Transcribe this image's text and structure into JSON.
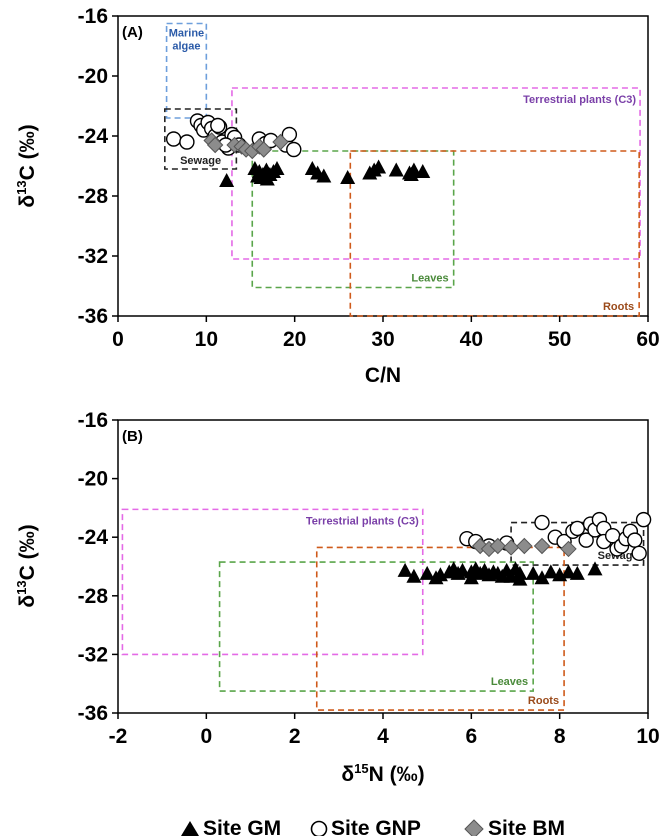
{
  "colors": {
    "marine": "#6e9fdc",
    "terrestrial": "#e46ae6",
    "sewage": "#222222",
    "leaves": "#5aa54a",
    "roots": "#cf5a1a",
    "terrestrial_text": "#7a3fa8",
    "leaves_text": "#4a8a3a",
    "roots_text": "#9a4a1a",
    "marine_text": "#2a5aa8",
    "gm": "#000000",
    "bm": "#8c8c8c"
  },
  "legend": {
    "position": "bottom-center",
    "items": [
      {
        "marker": "triangle",
        "label": "Site GM"
      },
      {
        "marker": "circle",
        "label": "Site GNP"
      },
      {
        "marker": "diamond",
        "label": "Site BM"
      }
    ]
  },
  "chart_data": [
    {
      "type": "scatter",
      "panel": "(A)",
      "xlabel": "C/N",
      "ylabel_main": "δ",
      "ylabel_sup": "13",
      "ylabel_rest": "C (‰)",
      "xlim": [
        0,
        60
      ],
      "ylim": [
        -36,
        -16
      ],
      "xticks": [
        0,
        10,
        20,
        30,
        40,
        50,
        60
      ],
      "yticks": [
        -16,
        -20,
        -24,
        -28,
        -32,
        -36
      ],
      "regions": [
        {
          "label_lines": [
            "Marine",
            "algae"
          ],
          "x": [
            5.5,
            10.0
          ],
          "y": [
            -22.8,
            -16.5
          ],
          "color_key": "marine",
          "text_key": "marine_text",
          "label_pos": "top-center"
        },
        {
          "label_lines": [
            "Terrestrial plants (C3)"
          ],
          "x": [
            12.9,
            59.1
          ],
          "y": [
            -32.2,
            -20.8
          ],
          "color_key": "terrestrial",
          "text_key": "terrestrial_text",
          "label_pos": "top-right"
        },
        {
          "label_lines": [
            "Sewage"
          ],
          "x": [
            5.3,
            13.4
          ],
          "y": [
            -26.2,
            -22.2
          ],
          "color_key": "sewage",
          "text_key": "sewage",
          "label_pos": "bottom-center"
        },
        {
          "label_lines": [
            "Leaves"
          ],
          "x": [
            15.2,
            38.0
          ],
          "y": [
            -34.1,
            -25.0
          ],
          "color_key": "leaves",
          "text_key": "leaves_text",
          "label_pos": "bottom-right"
        },
        {
          "label_lines": [
            "Roots"
          ],
          "x": [
            26.3,
            59.0
          ],
          "y": [
            -36.0,
            -25.0
          ],
          "color_key": "roots",
          "text_key": "roots_text",
          "label_pos": "bottom-right"
        }
      ],
      "series": [
        {
          "name": "Site GM",
          "marker": "triangle",
          "points": [
            [
              12.3,
              -27.0
            ],
            [
              15.5,
              -26.2
            ],
            [
              16.0,
              -26.4
            ],
            [
              16.4,
              -26.6
            ],
            [
              16.8,
              -26.3
            ],
            [
              17.2,
              -26.6
            ],
            [
              17.6,
              -26.4
            ],
            [
              18.0,
              -26.2
            ],
            [
              16.2,
              -26.8
            ],
            [
              16.9,
              -26.9
            ],
            [
              22.0,
              -26.2
            ],
            [
              22.6,
              -26.5
            ],
            [
              23.3,
              -26.7
            ],
            [
              26.0,
              -26.8
            ],
            [
              28.5,
              -26.5
            ],
            [
              29.0,
              -26.3
            ],
            [
              29.5,
              -26.1
            ],
            [
              31.5,
              -26.3
            ],
            [
              33.0,
              -26.5
            ],
            [
              33.5,
              -26.3
            ],
            [
              34.5,
              -26.4
            ],
            [
              33.2,
              -26.6
            ],
            [
              15.8,
              -26.7
            ]
          ]
        },
        {
          "name": "Site GNP",
          "marker": "circle",
          "points": [
            [
              6.3,
              -24.2
            ],
            [
              7.8,
              -24.4
            ],
            [
              9.0,
              -23.0
            ],
            [
              9.4,
              -23.3
            ],
            [
              9.7,
              -23.6
            ],
            [
              10.2,
              -23.1
            ],
            [
              10.6,
              -23.5
            ],
            [
              11.0,
              -24.0
            ],
            [
              11.5,
              -23.4
            ],
            [
              11.8,
              -24.4
            ],
            [
              12.5,
              -24.8
            ],
            [
              12.9,
              -23.9
            ],
            [
              13.2,
              -24.1
            ],
            [
              13.7,
              -24.6
            ],
            [
              16.0,
              -24.2
            ],
            [
              16.7,
              -24.5
            ],
            [
              17.3,
              -24.3
            ],
            [
              19.0,
              -24.6
            ],
            [
              19.4,
              -23.9
            ],
            [
              19.9,
              -24.9
            ],
            [
              11.3,
              -23.3
            ],
            [
              12.2,
              -24.6
            ]
          ]
        },
        {
          "name": "Site BM",
          "marker": "diamond",
          "points": [
            [
              10.6,
              -24.3
            ],
            [
              11.0,
              -24.6
            ],
            [
              13.2,
              -24.6
            ],
            [
              14.0,
              -24.7
            ],
            [
              14.5,
              -24.9
            ],
            [
              15.2,
              -25.0
            ],
            [
              16.0,
              -24.7
            ],
            [
              16.5,
              -24.9
            ],
            [
              18.4,
              -24.4
            ]
          ]
        }
      ]
    },
    {
      "type": "scatter",
      "panel": "(B)",
      "xlabel_main": "δ",
      "xlabel_sup": "15",
      "xlabel_rest": "N (‰)",
      "ylabel_main": "δ",
      "ylabel_sup": "13",
      "ylabel_rest": "C (‰)",
      "xlim": [
        -2,
        10
      ],
      "ylim": [
        -36,
        -16
      ],
      "xticks": [
        -2,
        0,
        2,
        4,
        6,
        8,
        10
      ],
      "yticks": [
        -16,
        -20,
        -24,
        -28,
        -32,
        -36
      ],
      "regions": [
        {
          "label_lines": [
            "Terrestrial plants (C3)"
          ],
          "x": [
            -1.9,
            4.9
          ],
          "y": [
            -32.0,
            -22.1
          ],
          "color_key": "terrestrial",
          "text_key": "terrestrial_text",
          "label_pos": "top-right"
        },
        {
          "label_lines": [
            "Sewage"
          ],
          "x": [
            6.9,
            9.9
          ],
          "y": [
            -25.9,
            -23.0
          ],
          "color_key": "sewage",
          "text_key": "sewage",
          "label_pos": "bottom-right"
        },
        {
          "label_lines": [
            "Leaves"
          ],
          "x": [
            0.3,
            7.4
          ],
          "y": [
            -34.5,
            -25.7
          ],
          "color_key": "leaves",
          "text_key": "leaves_text",
          "label_pos": "bottom-right"
        },
        {
          "label_lines": [
            "Roots"
          ],
          "x": [
            2.5,
            8.1
          ],
          "y": [
            -35.8,
            -24.7
          ],
          "color_key": "roots",
          "text_key": "roots_text",
          "label_pos": "bottom-right"
        }
      ],
      "series": [
        {
          "name": "Site GM",
          "marker": "triangle",
          "points": [
            [
              4.5,
              -26.3
            ],
            [
              4.7,
              -26.7
            ],
            [
              5.0,
              -26.5
            ],
            [
              5.3,
              -26.6
            ],
            [
              5.5,
              -26.4
            ],
            [
              5.7,
              -26.5
            ],
            [
              5.8,
              -26.3
            ],
            [
              6.0,
              -26.4
            ],
            [
              6.1,
              -26.2
            ],
            [
              6.2,
              -26.5
            ],
            [
              6.3,
              -26.3
            ],
            [
              6.4,
              -26.6
            ],
            [
              6.5,
              -26.4
            ],
            [
              6.6,
              -26.5
            ],
            [
              6.8,
              -26.3
            ],
            [
              6.9,
              -26.7
            ],
            [
              7.0,
              -26.2
            ],
            [
              7.1,
              -26.5
            ],
            [
              7.6,
              -26.8
            ],
            [
              7.8,
              -26.4
            ],
            [
              8.0,
              -26.6
            ],
            [
              8.2,
              -26.4
            ],
            [
              8.4,
              -26.5
            ],
            [
              8.8,
              -26.2
            ],
            [
              5.2,
              -26.8
            ],
            [
              6.0,
              -26.8
            ],
            [
              7.1,
              -26.9
            ],
            [
              5.6,
              -26.2
            ],
            [
              6.7,
              -26.7
            ],
            [
              7.4,
              -26.5
            ]
          ]
        },
        {
          "name": "Site GNP",
          "marker": "circle",
          "points": [
            [
              5.9,
              -24.1
            ],
            [
              6.1,
              -24.3
            ],
            [
              6.4,
              -24.6
            ],
            [
              6.8,
              -24.4
            ],
            [
              7.6,
              -23.0
            ],
            [
              7.9,
              -24.0
            ],
            [
              8.1,
              -24.3
            ],
            [
              8.3,
              -23.6
            ],
            [
              8.4,
              -23.4
            ],
            [
              8.6,
              -24.2
            ],
            [
              8.7,
              -23.1
            ],
            [
              8.8,
              -23.5
            ],
            [
              8.9,
              -22.8
            ],
            [
              9.0,
              -23.4
            ],
            [
              9.0,
              -24.3
            ],
            [
              9.2,
              -23.9
            ],
            [
              9.3,
              -24.8
            ],
            [
              9.4,
              -24.6
            ],
            [
              9.5,
              -24.1
            ],
            [
              9.6,
              -23.6
            ],
            [
              9.7,
              -24.2
            ],
            [
              9.8,
              -25.1
            ],
            [
              9.9,
              -22.8
            ]
          ]
        },
        {
          "name": "Site BM",
          "marker": "diamond",
          "points": [
            [
              6.2,
              -24.6
            ],
            [
              6.4,
              -24.8
            ],
            [
              6.6,
              -24.6
            ],
            [
              6.9,
              -24.7
            ],
            [
              7.2,
              -24.6
            ],
            [
              7.6,
              -24.6
            ],
            [
              8.2,
              -24.8
            ]
          ]
        }
      ]
    }
  ]
}
